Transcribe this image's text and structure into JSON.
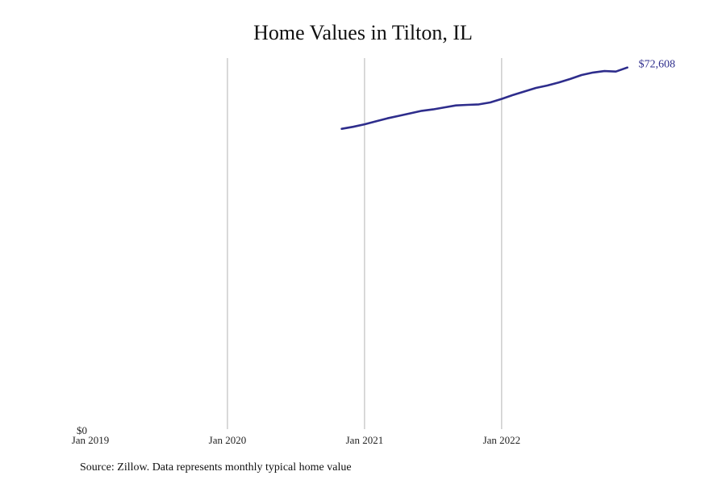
{
  "chart_data": {
    "type": "line",
    "title": "Home Values in Tilton, IL",
    "xlabel": "",
    "ylabel": "",
    "x_ticks": [
      "Jan 2019",
      "Jan 2020",
      "Jan 2021",
      "Jan 2022"
    ],
    "y_ticks": [
      "$0"
    ],
    "xlim": [
      "2019-01",
      "2023-02"
    ],
    "ylim": [
      0,
      74500
    ],
    "grid": "vertical lines at x ticks",
    "color": "#2e2d8c",
    "end_label": "$72,608",
    "series": [
      {
        "x": [
          "2020-11",
          "2020-12",
          "2021-01",
          "2021-02",
          "2021-03",
          "2021-04",
          "2021-05",
          "2021-06",
          "2021-07",
          "2021-08",
          "2021-09",
          "2021-10",
          "2021-11",
          "2021-12",
          "2022-01",
          "2022-02",
          "2022-03",
          "2022-04",
          "2022-05",
          "2022-06",
          "2022-07",
          "2022-08",
          "2022-09",
          "2022-10",
          "2022-11",
          "2022-12"
        ],
        "values": [
          60300,
          60700,
          61200,
          61800,
          62400,
          62900,
          63400,
          63900,
          64200,
          64600,
          65000,
          65100,
          65200,
          65600,
          66300,
          67100,
          67800,
          68500,
          69000,
          69600,
          70300,
          71100,
          71600,
          71900,
          71800,
          72608
        ]
      }
    ]
  },
  "source_note": "Source: Zillow. Data represents monthly typical home value"
}
